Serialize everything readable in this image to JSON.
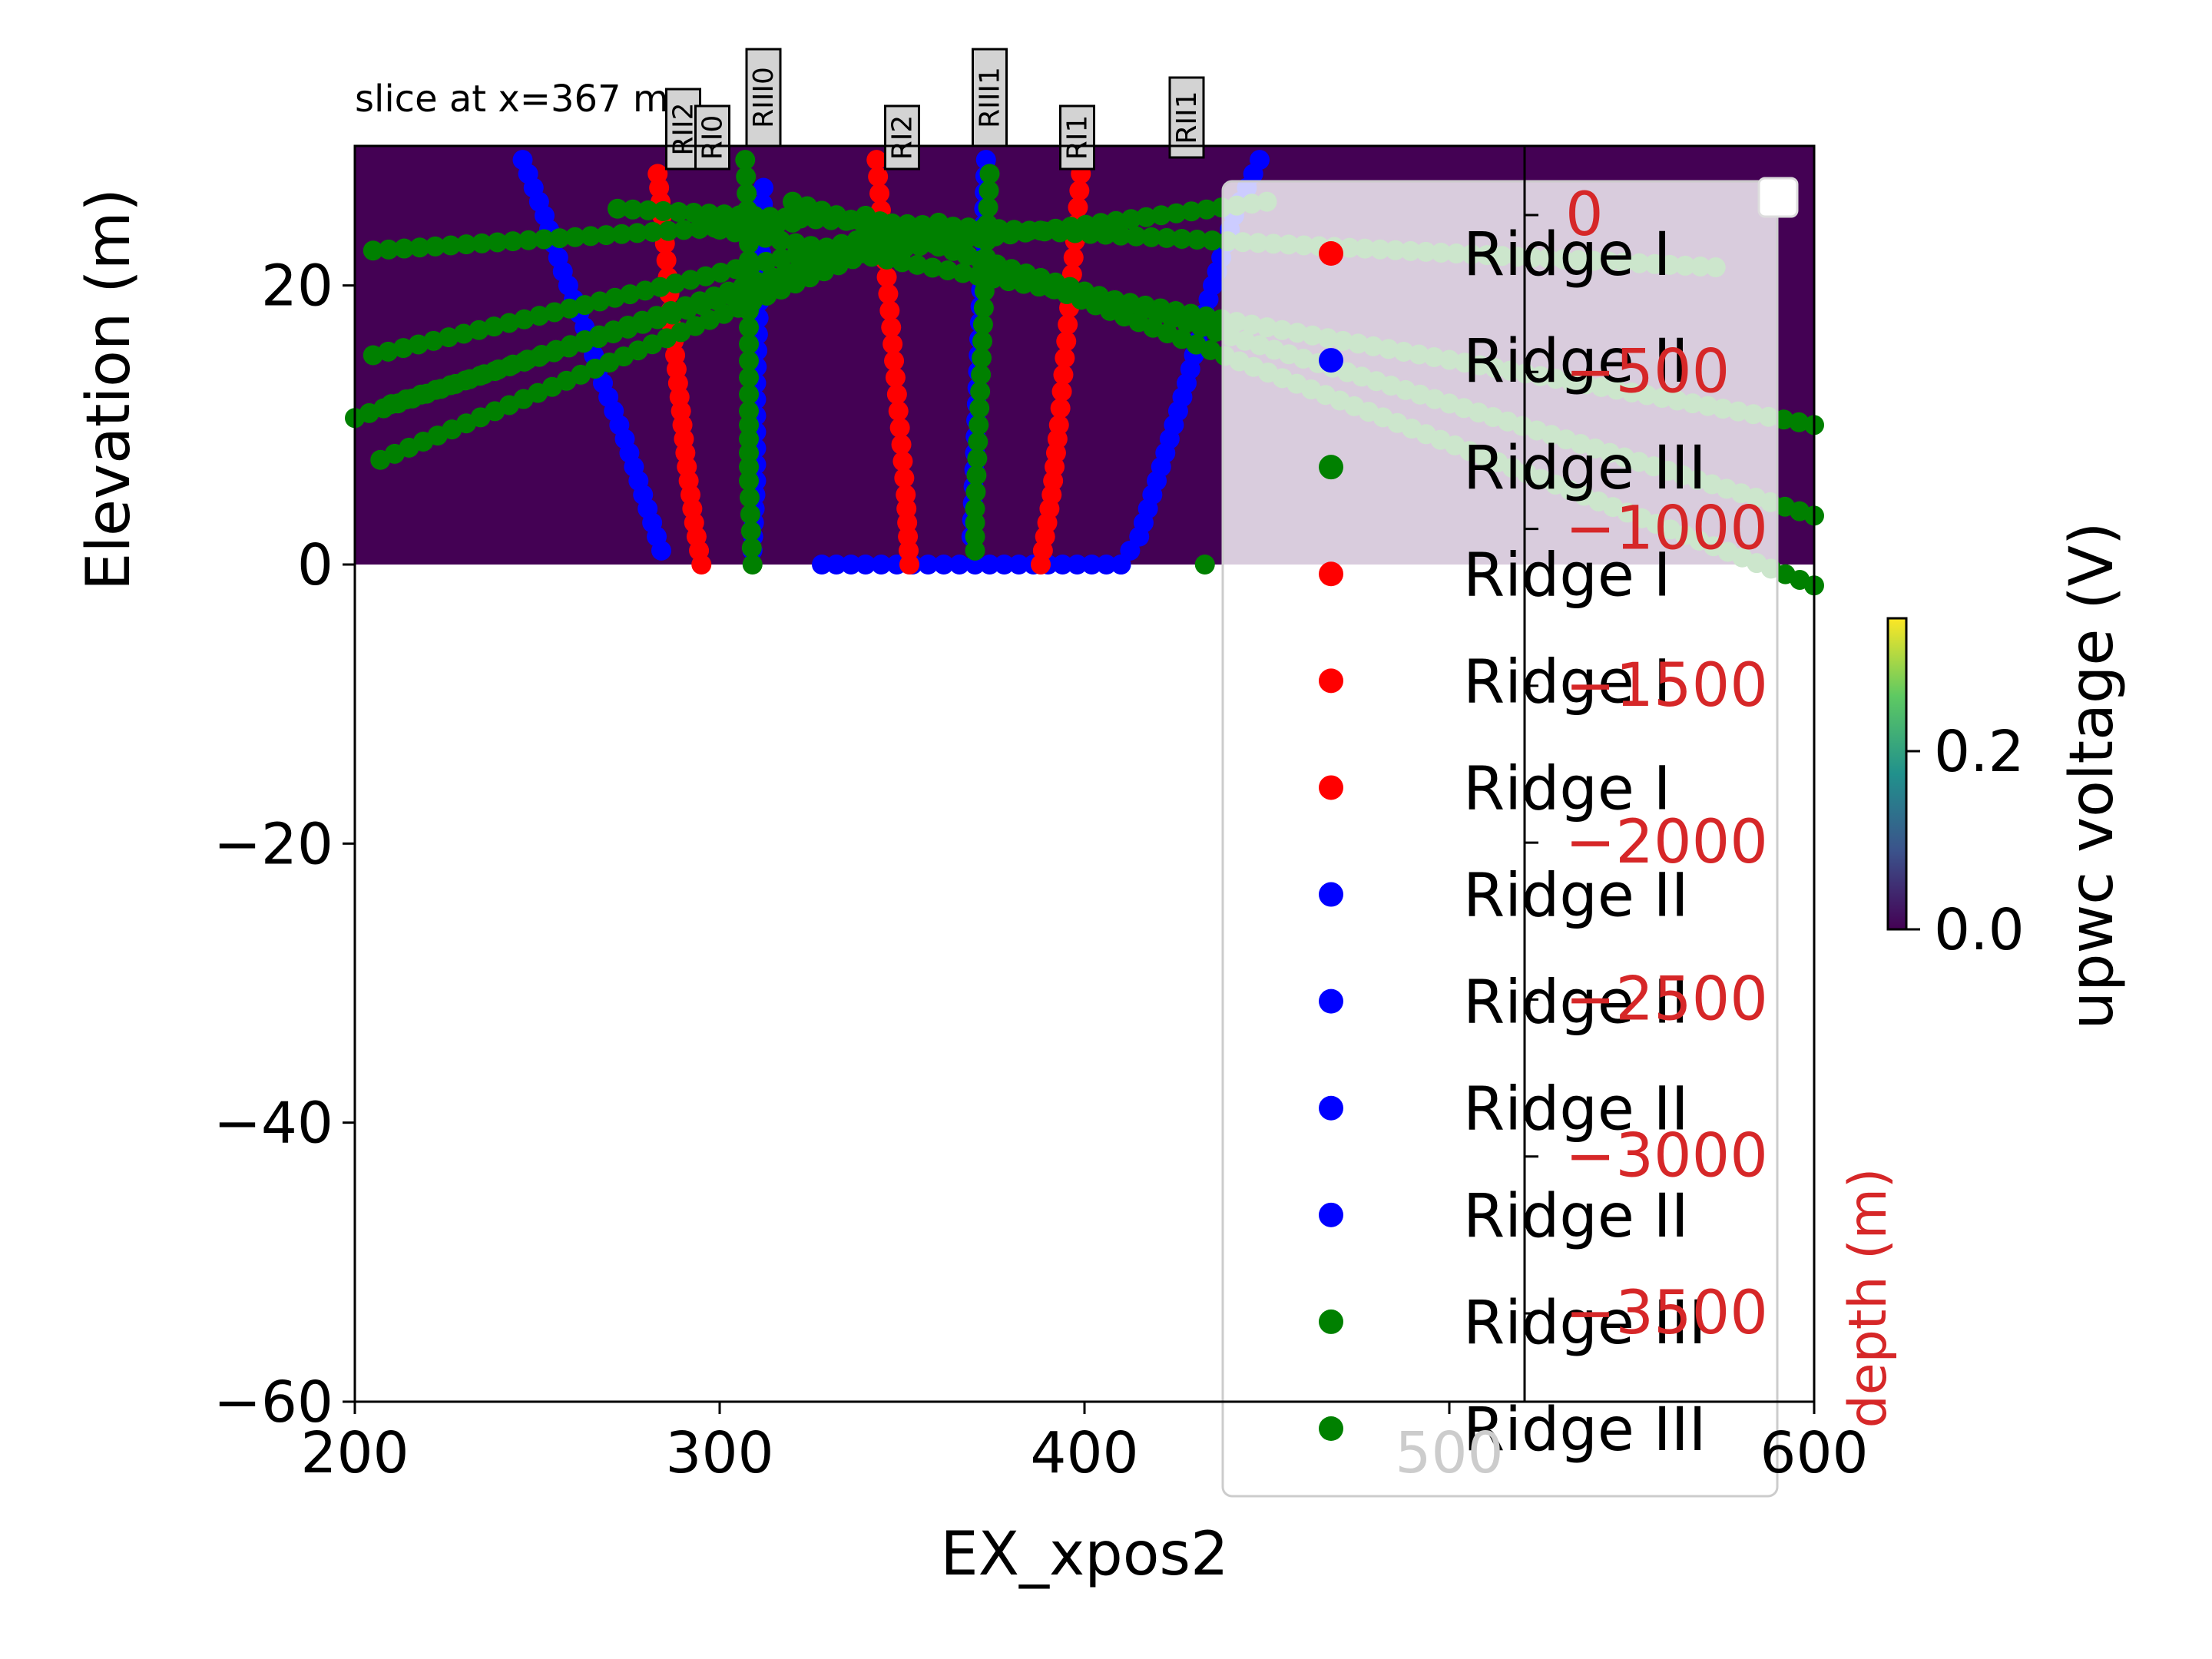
{
  "chart_data": {
    "type": "scatter",
    "title": "slice at x=367 m",
    "xlabel": "EX_xpos2",
    "ylabel": "Elevation (m)",
    "xlim": [
      200,
      600
    ],
    "ylim": [
      -60,
      30
    ],
    "xticks": [
      "200",
      "300",
      "400",
      "500",
      "600"
    ],
    "yticks": [
      "20",
      "0",
      "−20",
      "−40",
      "−60"
    ],
    "filled_region": {
      "x": [
        200,
        600
      ],
      "y": [
        0,
        30
      ],
      "color": "#440154"
    },
    "colorbar": {
      "label": "upwc voltage (V)",
      "ticks": [
        "0.2",
        "0.0"
      ],
      "colormap": "viridis",
      "range": [
        0.0,
        0.35
      ]
    },
    "secondary_axis": {
      "label": "depth (m)",
      "color": "#d62728",
      "position": "x=520",
      "ticks": [
        "0",
        "−500",
        "−1000",
        "−1500",
        "−2000",
        "−2500",
        "−3000",
        "−3500"
      ]
    },
    "well_labels": [
      "RII2",
      "RI0",
      "RIII0",
      "RI2",
      "RIII1",
      "RI1",
      "RII1"
    ],
    "legend": {
      "placement": "upper right",
      "entries": [
        {
          "label": "Ridge I",
          "color": "#ff0000"
        },
        {
          "label": "Ridge II",
          "color": "#0000ff"
        },
        {
          "label": "Ridge III",
          "color": "#008000"
        },
        {
          "label": "Ridge I",
          "color": "#ff0000"
        },
        {
          "label": "Ridge I",
          "color": "#ff0000"
        },
        {
          "label": "Ridge I",
          "color": "#ff0000"
        },
        {
          "label": "Ridge II",
          "color": "#0000ff"
        },
        {
          "label": "Ridge II",
          "color": "#0000ff"
        },
        {
          "label": "Ridge II",
          "color": "#0000ff"
        },
        {
          "label": "Ridge II",
          "color": "#0000ff"
        },
        {
          "label": "Ridge III",
          "color": "#008000"
        },
        {
          "label": "Ridge III",
          "color": "#008000"
        }
      ]
    },
    "series": [
      {
        "color": "#0000ff",
        "points": [
          [
            246,
            29
          ],
          [
            252,
            25
          ],
          [
            257,
            21
          ],
          [
            263,
            17
          ],
          [
            268,
            13
          ],
          [
            274,
            9
          ],
          [
            279,
            5
          ],
          [
            284,
            1
          ]
        ]
      },
      {
        "color": "#ff0000",
        "points": [
          [
            283,
            28
          ],
          [
            285,
            23
          ],
          [
            287,
            17
          ],
          [
            289,
            12
          ],
          [
            291,
            7
          ],
          [
            293,
            3
          ],
          [
            295,
            0
          ]
        ]
      },
      {
        "color": "#0000ff",
        "points": [
          [
            312,
            27
          ],
          [
            311,
            20
          ],
          [
            310,
            13
          ],
          [
            310,
            6
          ],
          [
            309,
            1
          ]
        ]
      },
      {
        "color": "#008000",
        "points": [
          [
            307,
            29
          ],
          [
            308,
            23
          ],
          [
            308,
            17
          ],
          [
            308,
            11
          ],
          [
            308,
            6
          ],
          [
            309,
            0
          ]
        ]
      },
      {
        "color": "#0000ff",
        "points": [
          [
            328,
            0
          ],
          [
            340,
            0
          ],
          [
            370,
            0
          ],
          [
            410,
            0
          ]
        ]
      },
      {
        "color": "#ff0000",
        "points": [
          [
            343,
            29
          ],
          [
            345,
            23
          ],
          [
            347,
            17
          ],
          [
            349,
            11
          ],
          [
            351,
            5
          ],
          [
            352,
            0
          ]
        ]
      },
      {
        "color": "#0000ff",
        "points": [
          [
            373,
            29
          ],
          [
            372,
            22
          ],
          [
            371,
            15
          ],
          [
            370,
            8
          ],
          [
            369,
            2
          ]
        ]
      },
      {
        "color": "#008000",
        "points": [
          [
            374,
            28
          ],
          [
            373,
            22
          ],
          [
            372,
            16
          ],
          [
            371,
            10
          ],
          [
            370,
            4
          ],
          [
            370,
            1
          ]
        ]
      },
      {
        "color": "#ff0000",
        "points": [
          [
            399,
            28
          ],
          [
            397,
            22
          ],
          [
            395,
            16
          ],
          [
            393,
            10
          ],
          [
            391,
            5
          ],
          [
            388,
            0
          ]
        ]
      },
      {
        "color": "#0000ff",
        "points": [
          [
            448,
            29
          ],
          [
            441,
            25
          ],
          [
            434,
            19
          ],
          [
            428,
            13
          ],
          [
            421,
            7
          ],
          [
            415,
            2
          ],
          [
            410,
            0
          ]
        ]
      },
      {
        "color": "#008000",
        "points": [
          [
            433,
            0
          ]
        ]
      },
      {
        "color": "#008000",
        "points": [
          [
            272,
            25.5
          ],
          [
            573,
            21.3
          ]
        ]
      },
      {
        "color": "#008000",
        "points": [
          [
            300,
            24
          ],
          [
            600,
            10
          ]
        ]
      },
      {
        "color": "#008000",
        "points": [
          [
            320,
            26
          ],
          [
            600,
            3.5
          ]
        ]
      },
      {
        "color": "#008000",
        "points": [
          [
            340,
            25
          ],
          [
            600,
            -1.5
          ]
        ]
      },
      {
        "color": "#008000",
        "points": [
          [
            205,
            22.5
          ],
          [
            320,
            24.5
          ]
        ]
      },
      {
        "color": "#008000",
        "points": [
          [
            205,
            15
          ],
          [
            350,
            24
          ]
        ]
      },
      {
        "color": "#008000",
        "points": [
          [
            210,
            11.5
          ],
          [
            360,
            24
          ]
        ]
      },
      {
        "color": "#008000",
        "points": [
          [
            200,
            10.5
          ],
          [
            330,
            22
          ]
        ]
      },
      {
        "color": "#008000",
        "points": [
          [
            207,
            7.5
          ],
          [
            360,
            24.5
          ]
        ]
      },
      {
        "color": "#008000",
        "points": [
          [
            330,
            22
          ],
          [
            450,
            26
          ]
        ]
      }
    ]
  }
}
